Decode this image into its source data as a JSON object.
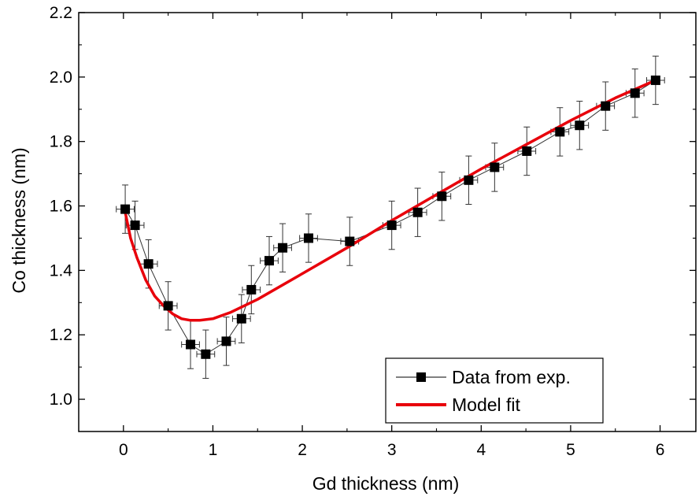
{
  "chart_data": {
    "type": "scatter",
    "xlabel": "Gd thickness (nm)",
    "ylabel": "Co thickness (nm)",
    "xlim": [
      -0.5,
      6.4
    ],
    "ylim": [
      0.9,
      2.2
    ],
    "xticks": [
      0,
      1,
      2,
      3,
      4,
      5,
      6
    ],
    "yticks": [
      1.0,
      1.2,
      1.4,
      1.6,
      1.8,
      2.0,
      2.2
    ],
    "xtick_labels": [
      "0",
      "1",
      "2",
      "3",
      "4",
      "5",
      "6"
    ],
    "ytick_labels": [
      "1.0",
      "1.2",
      "1.4",
      "1.6",
      "1.8",
      "2.0",
      "2.2"
    ],
    "grid": false,
    "legend_position": "bottom-right",
    "series": [
      {
        "name": "Data from exp.",
        "style": "markers-with-line",
        "color": "#000000",
        "x": [
          0.02,
          0.13,
          0.28,
          0.5,
          0.75,
          0.92,
          1.15,
          1.32,
          1.43,
          1.63,
          1.78,
          2.07,
          2.53,
          3.0,
          3.29,
          3.56,
          3.86,
          4.15,
          4.51,
          4.88,
          5.1,
          5.39,
          5.72,
          5.95
        ],
        "y": [
          1.59,
          1.54,
          1.42,
          1.29,
          1.17,
          1.14,
          1.18,
          1.25,
          1.34,
          1.43,
          1.47,
          1.5,
          1.49,
          1.54,
          1.58,
          1.63,
          1.68,
          1.72,
          1.77,
          1.83,
          1.85,
          1.91,
          1.95,
          1.99
        ],
        "xerr": [
          0.1,
          0.1,
          0.1,
          0.1,
          0.1,
          0.1,
          0.1,
          0.1,
          0.1,
          0.1,
          0.1,
          0.1,
          0.1,
          0.1,
          0.1,
          0.1,
          0.1,
          0.1,
          0.1,
          0.1,
          0.1,
          0.1,
          0.1,
          0.1
        ],
        "yerr": [
          0.075,
          0.075,
          0.075,
          0.075,
          0.075,
          0.075,
          0.075,
          0.075,
          0.075,
          0.075,
          0.075,
          0.075,
          0.075,
          0.075,
          0.075,
          0.075,
          0.075,
          0.075,
          0.075,
          0.075,
          0.075,
          0.075,
          0.075,
          0.075
        ]
      },
      {
        "name": "Model fit",
        "style": "line",
        "color": "#e8000b",
        "x": [
          0.02,
          0.08,
          0.15,
          0.25,
          0.35,
          0.45,
          0.55,
          0.65,
          0.75,
          0.85,
          1.0,
          1.2,
          1.5,
          2.0,
          2.5,
          3.0,
          3.5,
          4.0,
          4.5,
          5.0,
          5.5,
          5.95
        ],
        "y": [
          1.58,
          1.5,
          1.44,
          1.37,
          1.32,
          1.29,
          1.265,
          1.25,
          1.245,
          1.245,
          1.25,
          1.27,
          1.31,
          1.39,
          1.47,
          1.555,
          1.635,
          1.715,
          1.79,
          1.865,
          1.935,
          1.99
        ]
      }
    ]
  }
}
